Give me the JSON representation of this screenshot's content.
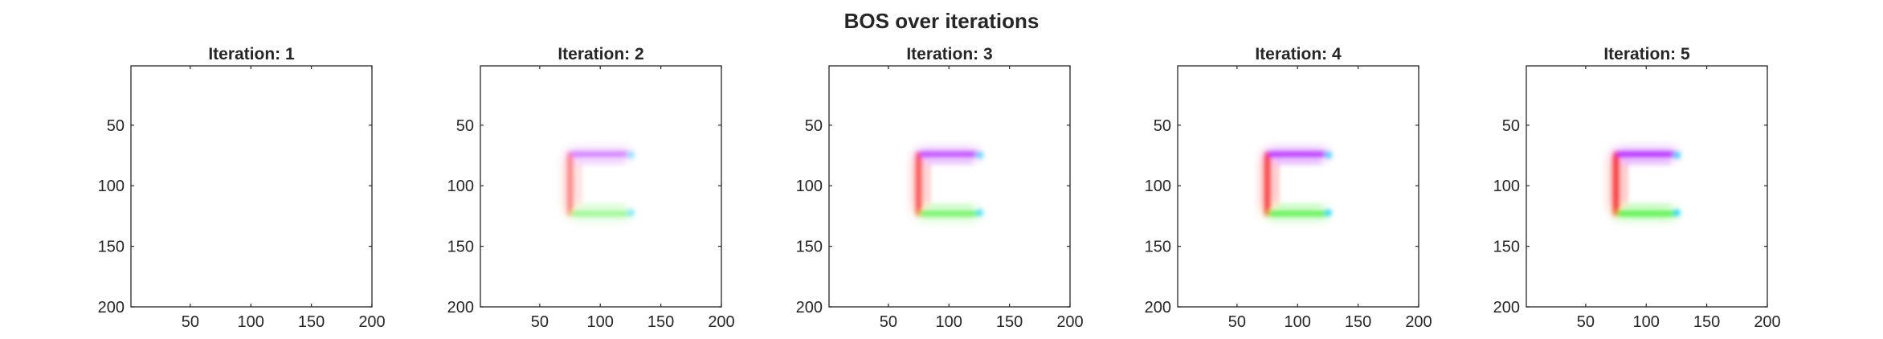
{
  "figure": {
    "title": "BOS over iterations",
    "background": "#ffffff",
    "axis_color": "#262626"
  },
  "chart_data": [
    {
      "type": "heatmap",
      "title": "Iteration: 1",
      "xlim": [
        1,
        200
      ],
      "ylim": [
        1,
        200
      ],
      "y_reversed": true,
      "xticks": [
        50,
        100,
        150,
        200
      ],
      "yticks": [
        50,
        100,
        150,
        200
      ],
      "shape": {
        "left_x": 75,
        "right_x": 124,
        "top_y": 74,
        "bottom_y": 123
      },
      "intensity": 0
    },
    {
      "type": "heatmap",
      "title": "Iteration: 2",
      "xlim": [
        1,
        200
      ],
      "ylim": [
        1,
        200
      ],
      "y_reversed": true,
      "xticks": [
        50,
        100,
        150,
        200
      ],
      "yticks": [
        50,
        100,
        150,
        200
      ],
      "shape": {
        "left_x": 75,
        "right_x": 124,
        "top_y": 74,
        "bottom_y": 123
      },
      "intensity": 0.55
    },
    {
      "type": "heatmap",
      "title": "Iteration: 3",
      "xlim": [
        1,
        200
      ],
      "ylim": [
        1,
        200
      ],
      "y_reversed": true,
      "xticks": [
        50,
        100,
        150,
        200
      ],
      "yticks": [
        50,
        100,
        150,
        200
      ],
      "shape": {
        "left_x": 75,
        "right_x": 124,
        "top_y": 74,
        "bottom_y": 123
      },
      "intensity": 0.8
    },
    {
      "type": "heatmap",
      "title": "Iteration: 4",
      "xlim": [
        1,
        200
      ],
      "ylim": [
        1,
        200
      ],
      "y_reversed": true,
      "xticks": [
        50,
        100,
        150,
        200
      ],
      "yticks": [
        50,
        100,
        150,
        200
      ],
      "shape": {
        "left_x": 75,
        "right_x": 124,
        "top_y": 74,
        "bottom_y": 123
      },
      "intensity": 0.9
    },
    {
      "type": "heatmap",
      "title": "Iteration: 5",
      "xlim": [
        1,
        200
      ],
      "ylim": [
        1,
        200
      ],
      "y_reversed": true,
      "xticks": [
        50,
        100,
        150,
        200
      ],
      "yticks": [
        50,
        100,
        150,
        200
      ],
      "shape": {
        "left_x": 75,
        "right_x": 124,
        "top_y": 74,
        "bottom_y": 123
      },
      "intensity": 1.0
    }
  ],
  "colors": {
    "left_bar": "#ff2020",
    "top_bar": "#b020ff",
    "bottom_bar": "#50f040",
    "tips": "#10d0ff"
  }
}
